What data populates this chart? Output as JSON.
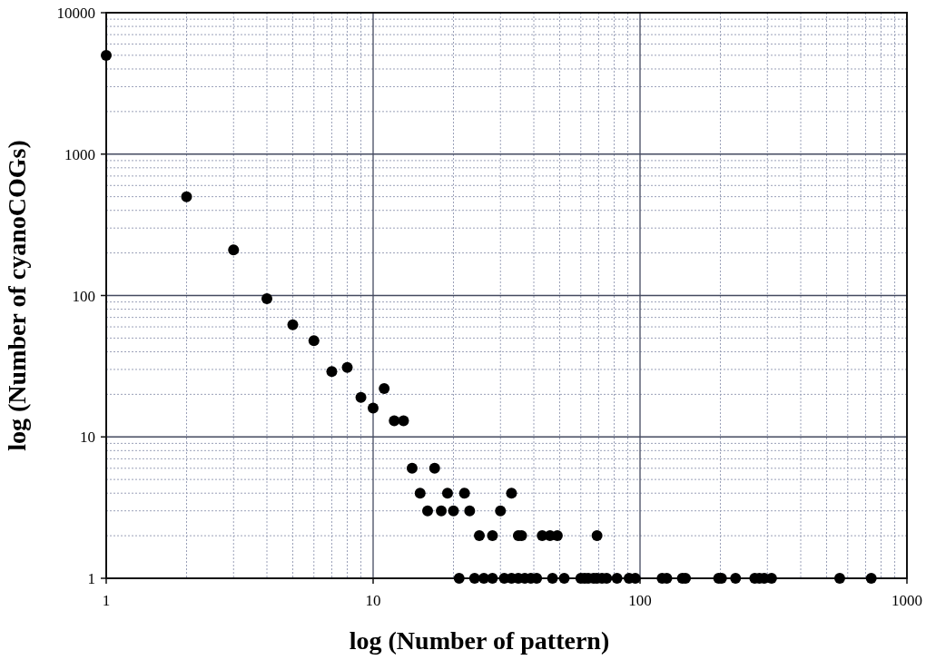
{
  "chart_data": {
    "type": "scatter",
    "xlabel": "log (Number of pattern)",
    "ylabel": "log (Number of cyanoCOGs)",
    "log": "xy",
    "grid": true,
    "marker": "circle",
    "xlim": [
      1,
      1000
    ],
    "xticks": [
      1,
      10,
      100,
      1000
    ],
    "ylim": [
      1,
      10000
    ],
    "yticks": [
      1,
      10,
      100,
      1000,
      10000
    ],
    "series": [
      {
        "color": "#000000",
        "x": [
          1,
          2,
          3,
          4,
          5,
          6,
          7,
          8,
          9,
          10,
          11,
          12,
          13,
          14,
          17,
          15,
          19,
          22,
          33,
          16,
          18,
          20,
          23,
          30,
          25,
          28,
          35,
          36,
          43,
          46,
          49,
          69,
          21,
          24,
          26,
          28,
          31,
          33,
          35,
          37,
          39,
          41,
          47,
          52,
          60,
          62,
          64,
          67,
          69,
          72,
          75,
          82,
          91,
          96,
          121,
          126,
          144,
          148,
          197,
          202,
          228,
          269,
          280,
          292,
          311,
          560,
          735
        ],
        "values": [
          5000,
          500,
          210,
          95,
          62,
          48,
          29,
          31,
          19,
          16,
          22,
          13,
          13,
          6,
          6,
          4,
          4,
          4,
          4,
          3,
          3,
          3,
          3,
          3,
          2,
          2,
          2,
          2,
          2,
          2,
          2,
          2,
          1,
          1,
          1,
          1,
          1,
          1,
          1,
          1,
          1,
          1,
          1,
          1,
          1,
          1,
          1,
          1,
          1,
          1,
          1,
          1,
          1,
          1,
          1,
          1,
          1,
          1,
          1,
          1,
          1,
          1,
          1,
          1,
          1,
          1,
          1
        ]
      }
    ]
  }
}
